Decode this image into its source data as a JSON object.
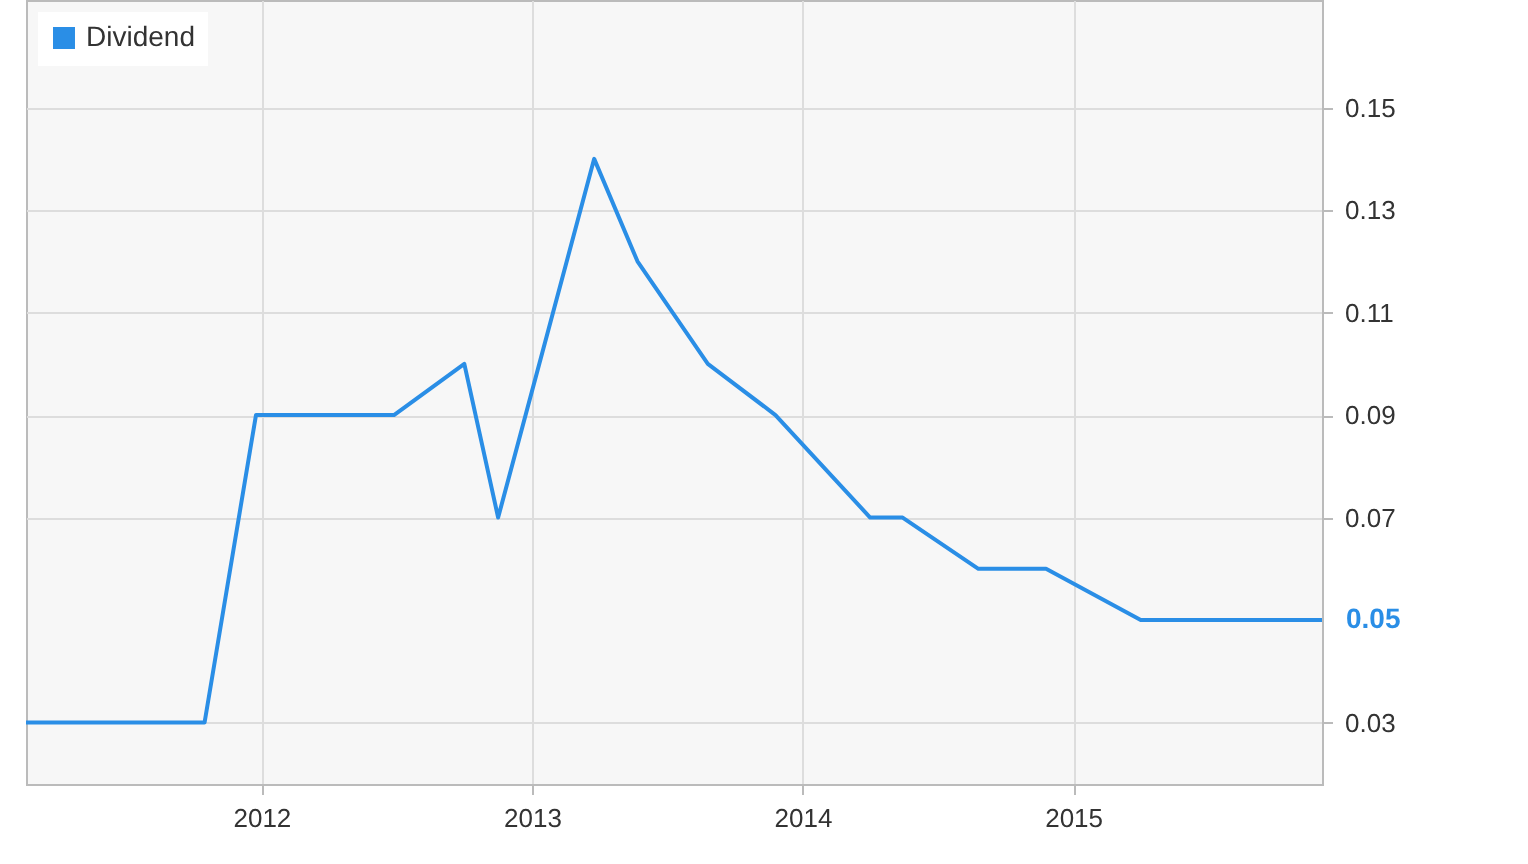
{
  "chart_data": {
    "type": "line",
    "x": [
      2011.13,
      2011.79,
      2011.98,
      2012.49,
      2012.75,
      2012.875,
      2013.23,
      2013.39,
      2013.65,
      2013.9,
      2014.25,
      2014.37,
      2014.65,
      2014.9,
      2015.25,
      2015.92
    ],
    "series": [
      {
        "name": "Dividend",
        "color": "#2a8ee6",
        "values": [
          0.03,
          0.03,
          0.09,
          0.09,
          0.1,
          0.07,
          0.14,
          0.12,
          0.1,
          0.09,
          0.07,
          0.07,
          0.06,
          0.06,
          0.05,
          0.05
        ],
        "value_labels": [
          null,
          null,
          null,
          null,
          null,
          null,
          null,
          null,
          null,
          null,
          null,
          null,
          null,
          null,
          null,
          "0.05"
        ]
      }
    ],
    "xlim": [
      2011.13,
      2015.92
    ],
    "xticks": [
      2012,
      2013,
      2014,
      2015
    ],
    "ylim": [
      0.018,
      0.171
    ],
    "yticks": [
      0.03,
      0.07,
      0.09,
      0.11,
      0.13,
      0.15
    ],
    "grid": true,
    "legend": "top left",
    "marker": "none",
    "line_style": "solid"
  }
}
